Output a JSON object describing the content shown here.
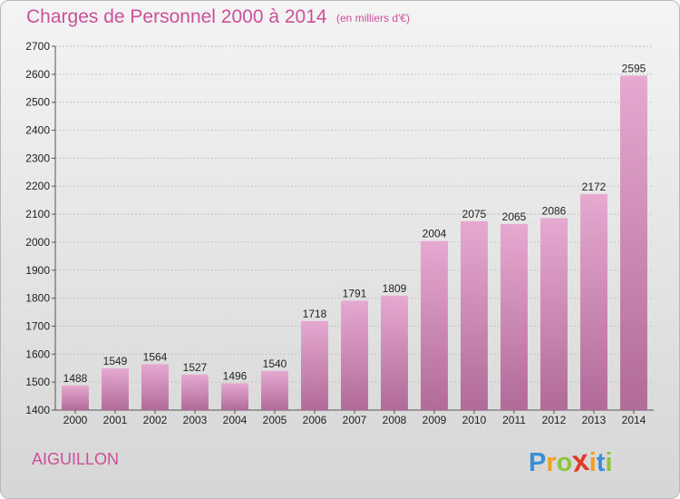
{
  "title": "Charges de Personnel 2000 à 2014",
  "unit_note": "(en milliers d'€)",
  "commune": "AIGUILLON",
  "logo": {
    "letters": [
      "P",
      "r",
      "o",
      "x",
      "i",
      "t",
      "i"
    ],
    "colors": [
      "#3a8fd6",
      "#f0a020",
      "#8cc63e",
      "#e23a2a",
      "#f0a020",
      "#3a8fd6",
      "#8cc63e"
    ]
  },
  "colors": {
    "title": "#cc4f9a",
    "bar_top": "#e6a9d0",
    "bar_bottom": "#b06b97"
  },
  "chart_data": {
    "type": "bar",
    "categories": [
      "2000",
      "2001",
      "2002",
      "2003",
      "2004",
      "2005",
      "2006",
      "2007",
      "2008",
      "2009",
      "2010",
      "2011",
      "2012",
      "2013",
      "2014"
    ],
    "values": [
      1488,
      1549,
      1564,
      1527,
      1496,
      1540,
      1718,
      1791,
      1809,
      2004,
      2075,
      2065,
      2086,
      2172,
      2595
    ],
    "ylim": [
      1400,
      2700
    ],
    "yticks": [
      1400,
      1500,
      1600,
      1700,
      1800,
      1900,
      2000,
      2100,
      2200,
      2300,
      2400,
      2500,
      2600,
      2700
    ],
    "grid": true
  }
}
